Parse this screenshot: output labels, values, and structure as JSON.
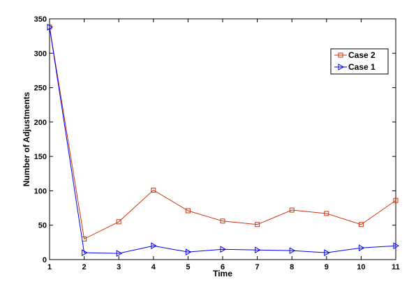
{
  "chart_data": {
    "type": "line",
    "title": "",
    "xlabel": "Time",
    "ylabel": "Number of Adjustments",
    "x": [
      1,
      2,
      3,
      4,
      5,
      6,
      7,
      8,
      9,
      10,
      11
    ],
    "xlim": [
      1,
      11
    ],
    "ylim": [
      0,
      350
    ],
    "xticks": [
      "1",
      "2",
      "3",
      "4",
      "5",
      "6",
      "7",
      "8",
      "9",
      "10",
      "11"
    ],
    "yticks": [
      "0",
      "50",
      "100",
      "150",
      "200",
      "250",
      "300",
      "350"
    ],
    "grid": false,
    "legend_position": "top-right",
    "series": [
      {
        "name": "Case 2",
        "color": "#cc3311",
        "marker": "square",
        "values": [
          338,
          30,
          55,
          101,
          71,
          56,
          51,
          72,
          67,
          51,
          86
        ]
      },
      {
        "name": "Case 1",
        "color": "#0000ee",
        "marker": "triangle-right",
        "values": [
          338,
          10,
          9,
          20,
          11,
          15,
          14,
          13,
          10,
          17,
          20
        ]
      }
    ]
  }
}
